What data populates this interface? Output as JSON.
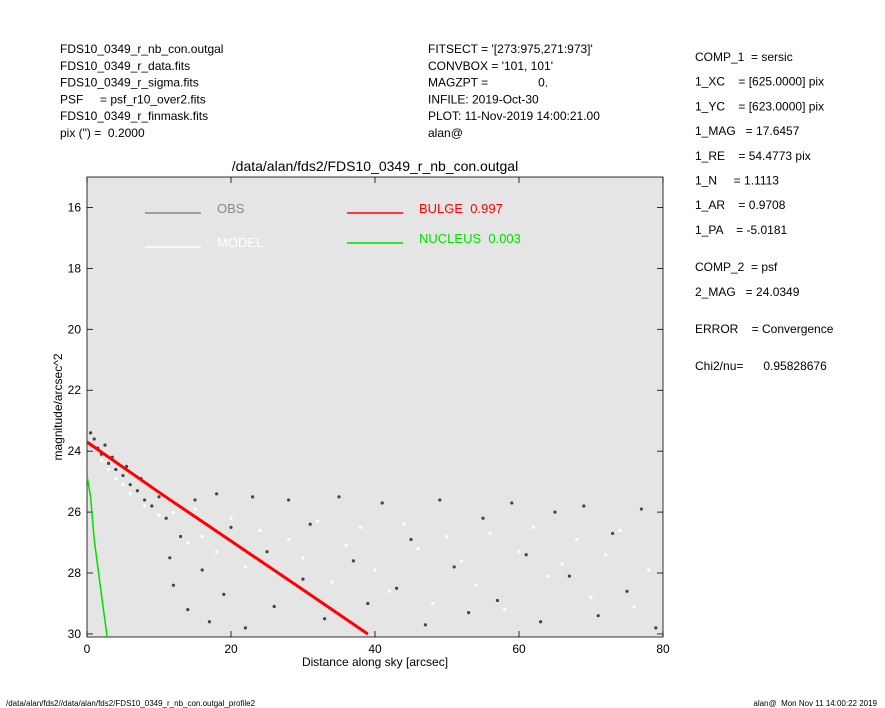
{
  "chart_data": {
    "type": "scatter",
    "title": "/data/alan/fds2/FDS10_0349_r_nb_con.outgal",
    "x_label": "Distance along sky [arcsec]",
    "y_label": "magnitude/arcsec^2",
    "xlim": [
      0,
      80
    ],
    "xticks": [
      0,
      20,
      40,
      60,
      80
    ],
    "ylim": [
      30.1,
      15
    ],
    "yticks": [
      16,
      18,
      20,
      22,
      24,
      26,
      28,
      30
    ],
    "background": "#e5e5e5",
    "annotations": {
      "left": [
        "FDS10_0349_r_nb_con.outgal",
        "FDS10_0349_r_data.fits",
        "FDS10_0349_r_sigma.fits",
        "PSF     = psf_r10_over2.fits",
        "FDS10_0349_r_finmask.fits",
        "pix (\") =  0.2000"
      ],
      "middle": [
        "FITSECT = '[273:975,271:973]'",
        "CONVBOX = '101, 101'",
        "MAGZPT =               0.",
        "INFILE: 2019-Oct-30",
        "PLOT: 11-Nov-2019 14:00:21.00",
        "alan@"
      ],
      "right": [
        [
          "COMP_1  = sersic",
          "1_XC    = [625.0000] pix",
          "1_YC    = [623.0000] pix",
          "1_MAG   = 17.6457",
          "1_RE    = 54.4773 pix",
          "1_N     = 1.1113",
          "1_AR    = 0.9708",
          "1_PA    = -5.0181"
        ],
        [
          "COMP_2  = psf",
          "2_MAG   = 24.0349"
        ],
        [
          "ERROR    = Convergence"
        ],
        [
          "Chi2/nu=      0.95828676"
        ]
      ],
      "footer_left": "/data/alan/fds2//data/alan/fds2/FDS10_0349_r_nb_con.outgal_profile2",
      "footer_right": "alan@  Mon Nov 11 14:00:22 2019"
    },
    "series": [
      {
        "name": "OBS",
        "color": "#444444",
        "legend_color": "#888888",
        "style": "points",
        "x": [
          0.5,
          1,
          1.5,
          2,
          2.5,
          3,
          3.5,
          4,
          5,
          5.5,
          6,
          7,
          7.5,
          8,
          9,
          10,
          11,
          11.5,
          12,
          13,
          14,
          15,
          16,
          17,
          18,
          19,
          20,
          22,
          23,
          25,
          26,
          28,
          30,
          31,
          33,
          35,
          37,
          39,
          41,
          43,
          45,
          47,
          49,
          51,
          53,
          55,
          57,
          59,
          61,
          63,
          65,
          67,
          69,
          71,
          73,
          75,
          77,
          79
        ],
        "values": [
          23.4,
          23.6,
          23.9,
          24.1,
          23.8,
          24.4,
          24.2,
          24.6,
          24.8,
          24.5,
          25.1,
          25.3,
          24.9,
          25.6,
          25.8,
          25.5,
          26.2,
          27.5,
          28.4,
          26.8,
          29.2,
          25.6,
          27.9,
          29.6,
          25.4,
          28.7,
          26.5,
          29.8,
          25.5,
          27.3,
          29.1,
          25.6,
          28.2,
          26.4,
          29.5,
          25.5,
          27.6,
          29.0,
          25.7,
          28.5,
          26.9,
          29.7,
          25.6,
          27.8,
          29.3,
          26.2,
          28.9,
          25.7,
          27.4,
          29.6,
          26.0,
          28.1,
          25.8,
          29.4,
          26.7,
          28.6,
          25.9,
          29.8
        ]
      },
      {
        "name": "MODEL",
        "color": "#ffffff",
        "legend_color": "#ffffff",
        "style": "points",
        "x": [
          1,
          2,
          3,
          4,
          5,
          6,
          8,
          10,
          12,
          14,
          15,
          16,
          18,
          20,
          22,
          24,
          26,
          28,
          30,
          32,
          34,
          36,
          38,
          40,
          42,
          44,
          46,
          48,
          50,
          52,
          54,
          56,
          58,
          60,
          62,
          64,
          66,
          68,
          70,
          72,
          74,
          76,
          78
        ],
        "values": [
          23.9,
          24.3,
          24.6,
          24.9,
          25.1,
          25.4,
          25.8,
          26.1,
          26.0,
          27.0,
          25.9,
          26.8,
          27.3,
          26.2,
          27.8,
          26.6,
          28.0,
          26.9,
          27.5,
          26.3,
          28.3,
          27.1,
          26.5,
          27.9,
          28.6,
          26.4,
          27.2,
          29.0,
          26.8,
          27.6,
          28.4,
          26.7,
          29.2,
          27.3,
          26.5,
          28.1,
          27.7,
          26.9,
          28.8,
          27.4,
          26.6,
          29.1,
          27.9
        ]
      },
      {
        "name": "BULGE  0.997",
        "color": "#ff0000",
        "legend_color": "#ff0000",
        "style": "line",
        "x": [
          0,
          10,
          20,
          30,
          39
        ],
        "values": [
          23.7,
          25.35,
          26.95,
          28.55,
          30.0
        ]
      },
      {
        "name": "NUCLEUS  0.003",
        "color": "#00dd00",
        "legend_color": "#00dd00",
        "style": "line",
        "x": [
          0,
          0.5,
          1,
          2,
          2.8
        ],
        "values": [
          24.8,
          25.5,
          26.9,
          28.7,
          30.1
        ]
      }
    ]
  }
}
